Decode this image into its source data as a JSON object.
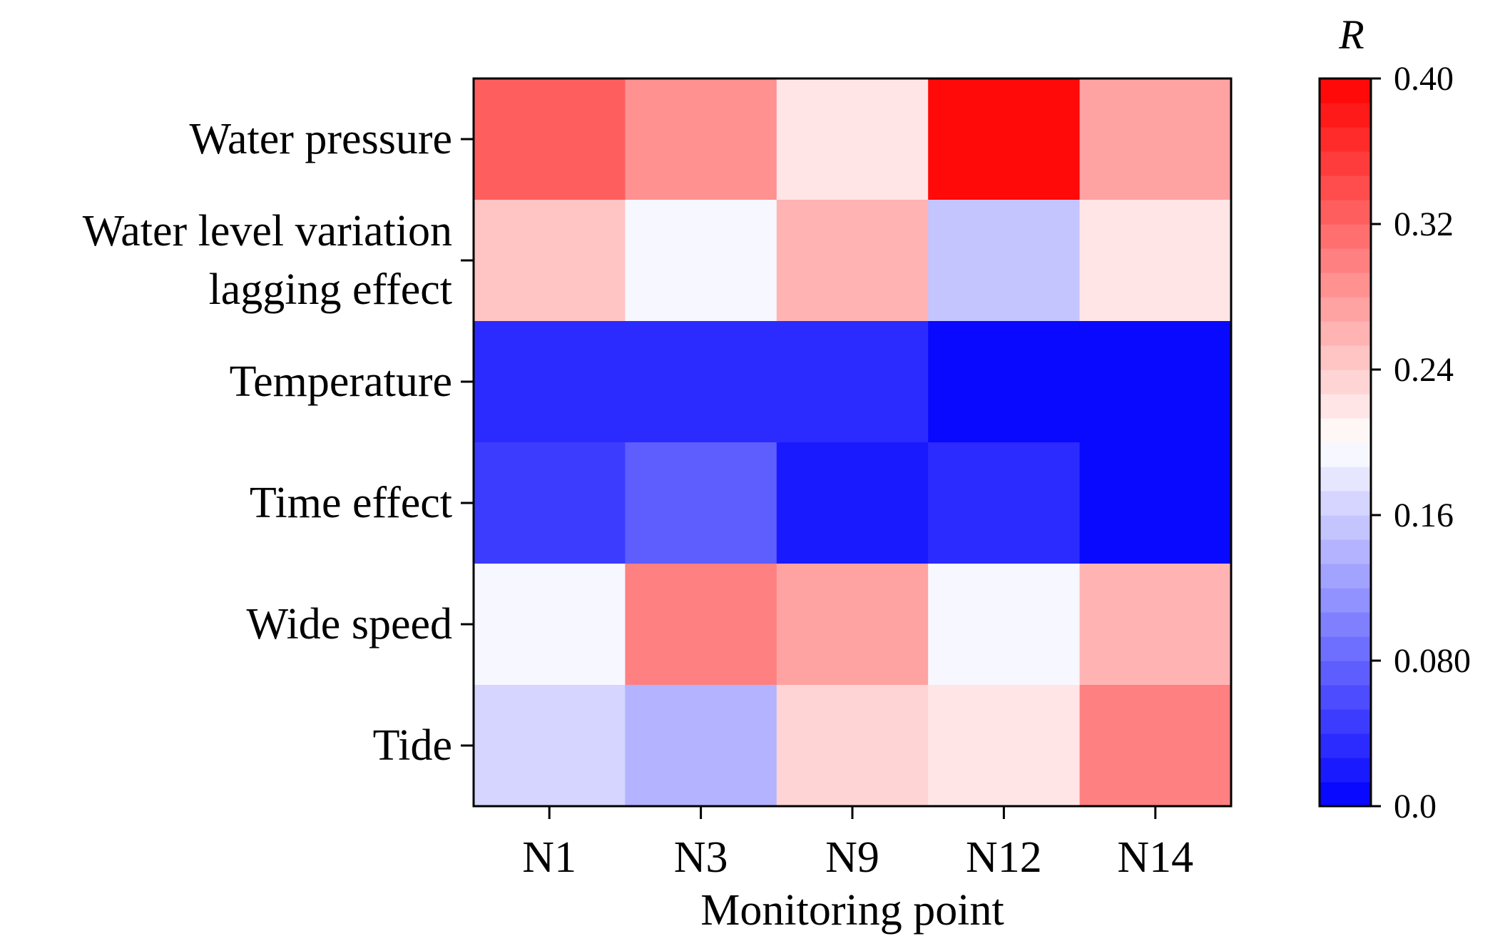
{
  "chart_data": {
    "type": "heatmap",
    "xlabel": "Monitoring point",
    "x_categories": [
      "N1",
      "N3",
      "N9",
      "N12",
      "N14"
    ],
    "y_categories": [
      [
        "Water pressure"
      ],
      [
        "Water level variation",
        "lagging  effect"
      ],
      [
        "Temperature"
      ],
      [
        "Time  effect"
      ],
      [
        "Wide speed"
      ],
      [
        "Tide"
      ]
    ],
    "values": [
      [
        0.33,
        0.288,
        0.216,
        0.4,
        0.268
      ],
      [
        0.252,
        0.198,
        0.258,
        0.148,
        0.214
      ],
      [
        0.03,
        0.03,
        0.032,
        0.006,
        0.004
      ],
      [
        0.046,
        0.078,
        0.02,
        0.034,
        0.002
      ],
      [
        0.198,
        0.3,
        0.27,
        0.198,
        0.258
      ],
      [
        0.165,
        0.145,
        0.234,
        0.215,
        0.3
      ]
    ],
    "colorbar": {
      "title": "R",
      "min": 0.0,
      "max": 0.4,
      "ticks": [
        0.0,
        0.08,
        0.16,
        0.24,
        0.32,
        0.4
      ],
      "tick_labels": [
        "0.0",
        "0.080",
        "0.16",
        "0.24",
        "0.32",
        "0.40"
      ],
      "levels": 30,
      "low_color": "#0000ff",
      "mid_color": "#ffffff",
      "high_color": "#ff0000"
    }
  }
}
